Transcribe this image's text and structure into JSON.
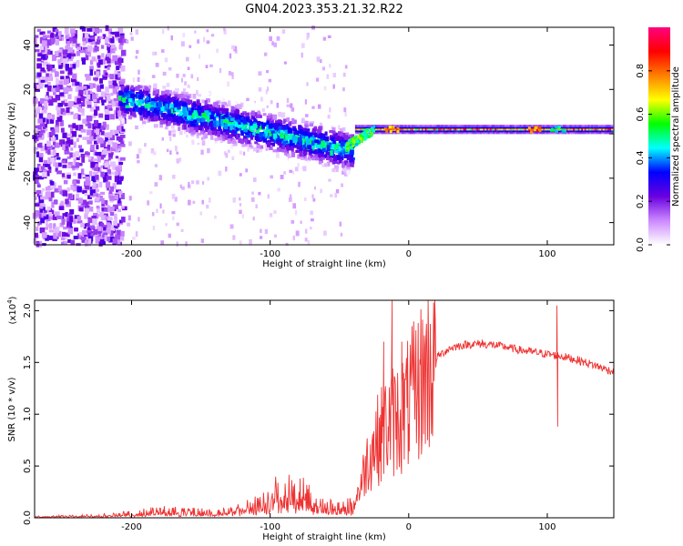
{
  "title": "GN04.2023.353.21.32.R22",
  "chart_data": [
    {
      "type": "heatmap",
      "xlabel": "Height of straight line (km)",
      "ylabel": "Frequency (Hz)",
      "xlim": [
        -270,
        148
      ],
      "ylim": [
        -50,
        48
      ],
      "xticks": [
        -200,
        -100,
        0,
        100
      ],
      "yticks": [
        -40,
        -20,
        0,
        20,
        40
      ],
      "colorbar": {
        "label": "Normalized spectral amplitude",
        "range": [
          0,
          1
        ],
        "ticks": [
          "0.0",
          "0.2",
          "0.4",
          "0.6",
          "0.8"
        ],
        "colors": [
          "#ffffff",
          "#cc88ff",
          "#6a00e0",
          "#0000ff",
          "#00ffff",
          "#00ff00",
          "#ffff00",
          "#ff8000",
          "#ff0000",
          "#ff0080"
        ]
      },
      "features": {
        "noise_region": [
          -270,
          -205
        ],
        "dispersed_band": {
          "x": [
            -208,
            -40
          ],
          "freq_start": 16,
          "freq_end": -8,
          "amplitude": [
            0.3,
            0.5
          ]
        },
        "steady_line": {
          "x": [
            -38,
            148
          ],
          "freq": 2,
          "amplitude": [
            0.6,
            0.9
          ]
        },
        "hot_spots": [
          {
            "x": -12,
            "freq": 2,
            "amplitude": 0.85
          },
          {
            "x": 90,
            "freq": 2,
            "amplitude": 0.9
          },
          {
            "x": 108,
            "freq": 2,
            "amplitude": 0.6
          }
        ]
      }
    },
    {
      "type": "line",
      "xlabel": "Height of straight line (km)",
      "ylabel": "SNR (10 * v/v)",
      "yscale_label": "(x10",
      "yscale_exp": "4",
      "xlim": [
        -270,
        148
      ],
      "ylim": [
        0,
        2.1
      ],
      "xticks": [
        -200,
        -100,
        0,
        100
      ],
      "yticks": [
        "0.0",
        "0.5",
        "1.0",
        "1.5",
        "2.0"
      ],
      "ytick_values": [
        0,
        0.5,
        1.0,
        1.5,
        2.0
      ],
      "color": "#ee3333",
      "envelope": {
        "x": [
          -270,
          -230,
          -200,
          -180,
          -160,
          -140,
          -130,
          -120,
          -110,
          -100,
          -90,
          -80,
          -70,
          -60,
          -50,
          -40,
          -35,
          -30,
          -25,
          -20,
          -15,
          -10,
          -5,
          0,
          10,
          20,
          30,
          40,
          50,
          60,
          70,
          80,
          90,
          100,
          110,
          120,
          130,
          148
        ],
        "y": [
          0.01,
          0.02,
          0.04,
          0.07,
          0.06,
          0.05,
          0.06,
          0.09,
          0.15,
          0.22,
          0.28,
          0.26,
          0.18,
          0.12,
          0.1,
          0.12,
          0.3,
          0.55,
          0.7,
          0.8,
          0.9,
          0.95,
          1.0,
          1.1,
          1.35,
          1.55,
          1.64,
          1.67,
          1.68,
          1.67,
          1.65,
          1.62,
          1.6,
          1.58,
          1.56,
          1.53,
          1.49,
          1.41
        ]
      },
      "spikes": [
        {
          "x": -18,
          "y": 1.7
        },
        {
          "x": -12,
          "y": 2.1
        },
        {
          "x": -5,
          "y": 1.7
        },
        {
          "x": 53,
          "y": 1.72
        },
        {
          "x": 107,
          "y": 2.05
        },
        {
          "x": 107.5,
          "y": 0.88
        }
      ]
    }
  ]
}
